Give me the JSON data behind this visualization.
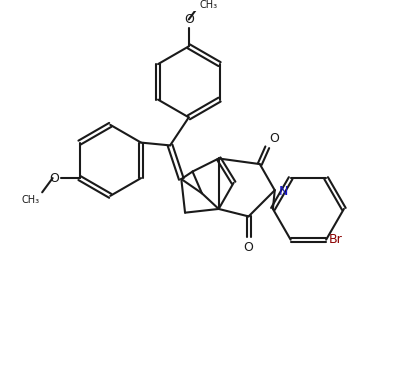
{
  "bg_color": "#ffffff",
  "line_color": "#1a1a1a",
  "label_color_N": "#1414c8",
  "label_color_Br": "#8b0000",
  "figsize": [
    4.0,
    3.86
  ],
  "dpi": 100,
  "bond_lw": 1.5,
  "font_size": 9.0,
  "xlim": [
    -1.5,
    8.5
  ],
  "ylim": [
    -2.5,
    7.5
  ]
}
